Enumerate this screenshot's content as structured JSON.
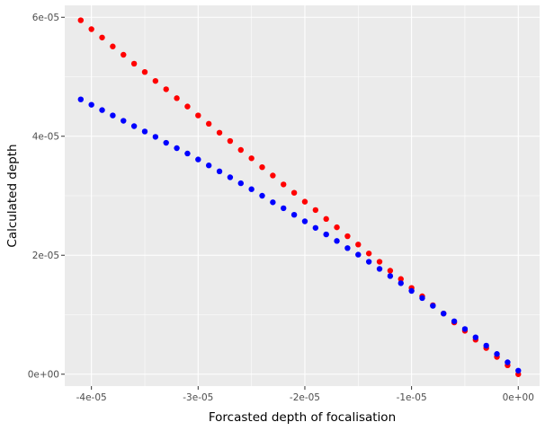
{
  "chart_data": {
    "type": "scatter",
    "title": "",
    "xlabel": "Forcasted depth of focalisation",
    "ylabel": "Calculated depth",
    "xlim": [
      -4.25e-05,
      2e-06
    ],
    "ylim": [
      -2e-06,
      6.2e-05
    ],
    "x_ticks": [
      {
        "value": -4e-05,
        "label": "-4e-05"
      },
      {
        "value": -3e-05,
        "label": "-3e-05"
      },
      {
        "value": -2e-05,
        "label": "-2e-05"
      },
      {
        "value": -1e-05,
        "label": "-1e-05"
      },
      {
        "value": 0,
        "label": "0e+00"
      }
    ],
    "y_ticks": [
      {
        "value": 0,
        "label": "0e+00"
      },
      {
        "value": 2e-05,
        "label": "2e-05"
      },
      {
        "value": 4e-05,
        "label": "4e-05"
      },
      {
        "value": 6e-05,
        "label": "6e-05"
      }
    ],
    "grid": true,
    "legend": "none",
    "background": "#EBEBEB",
    "series": [
      {
        "color": "#FF0000",
        "x": [
          -4.1e-05,
          -4e-05,
          -3.9e-05,
          -3.8e-05,
          -3.7e-05,
          -3.6e-05,
          -3.5e-05,
          -3.4e-05,
          -3.3e-05,
          -3.2e-05,
          -3.1e-05,
          -3e-05,
          -2.9e-05,
          -2.8e-05,
          -2.7e-05,
          -2.6e-05,
          -2.5e-05,
          -2.4e-05,
          -2.3e-05,
          -2.2e-05,
          -2.1e-05,
          -2e-05,
          -1.9e-05,
          -1.8e-05,
          -1.7e-05,
          -1.6e-05,
          -1.5e-05,
          -1.4e-05,
          -1.3e-05,
          -1.2e-05,
          -1.1e-05,
          -1e-05,
          -9e-06,
          -8e-06,
          -7e-06,
          -6e-06,
          -5e-06,
          -4e-06,
          -3e-06,
          -2e-06,
          -1e-06,
          0.0
        ],
        "y": [
          5.95e-05,
          5.8e-05,
          5.66e-05,
          5.51e-05,
          5.37e-05,
          5.22e-05,
          5.08e-05,
          4.93e-05,
          4.79e-05,
          4.64e-05,
          4.5e-05,
          4.35e-05,
          4.21e-05,
          4.06e-05,
          3.92e-05,
          3.77e-05,
          3.63e-05,
          3.48e-05,
          3.34e-05,
          3.19e-05,
          3.05e-05,
          2.9e-05,
          2.76e-05,
          2.61e-05,
          2.47e-05,
          2.32e-05,
          2.18e-05,
          2.03e-05,
          1.89e-05,
          1.74e-05,
          1.6e-05,
          1.45e-05,
          1.31e-05,
          1.16e-05,
          1.02e-05,
          8.7e-06,
          7.3e-06,
          5.8e-06,
          4.4e-06,
          2.9e-06,
          1.5e-06,
          0.0
        ]
      },
      {
        "color": "#0000FF",
        "x": [
          -4.1e-05,
          -4e-05,
          -3.9e-05,
          -3.8e-05,
          -3.7e-05,
          -3.6e-05,
          -3.5e-05,
          -3.4e-05,
          -3.3e-05,
          -3.2e-05,
          -3.1e-05,
          -3e-05,
          -2.9e-05,
          -2.8e-05,
          -2.7e-05,
          -2.6e-05,
          -2.5e-05,
          -2.4e-05,
          -2.3e-05,
          -2.2e-05,
          -2.1e-05,
          -2e-05,
          -1.9e-05,
          -1.8e-05,
          -1.7e-05,
          -1.6e-05,
          -1.5e-05,
          -1.4e-05,
          -1.3e-05,
          -1.2e-05,
          -1.1e-05,
          -1e-05,
          -9e-06,
          -8e-06,
          -7e-06,
          -6e-06,
          -5e-06,
          -4e-06,
          -3e-06,
          -2e-06,
          -1e-06,
          0.0
        ],
        "y": [
          4.62e-05,
          4.53e-05,
          4.44e-05,
          4.35e-05,
          4.26e-05,
          4.17e-05,
          4.08e-05,
          3.99e-05,
          3.89e-05,
          3.8e-05,
          3.71e-05,
          3.61e-05,
          3.51e-05,
          3.41e-05,
          3.31e-05,
          3.21e-05,
          3.11e-05,
          3e-05,
          2.89e-05,
          2.79e-05,
          2.68e-05,
          2.57e-05,
          2.46e-05,
          2.35e-05,
          2.24e-05,
          2.12e-05,
          2.01e-05,
          1.89e-05,
          1.77e-05,
          1.65e-05,
          1.53e-05,
          1.4e-05,
          1.28e-05,
          1.15e-05,
          1.02e-05,
          8.9e-06,
          7.6e-06,
          6.2e-06,
          4.8e-06,
          3.4e-06,
          2e-06,
          6e-07
        ]
      }
    ]
  }
}
